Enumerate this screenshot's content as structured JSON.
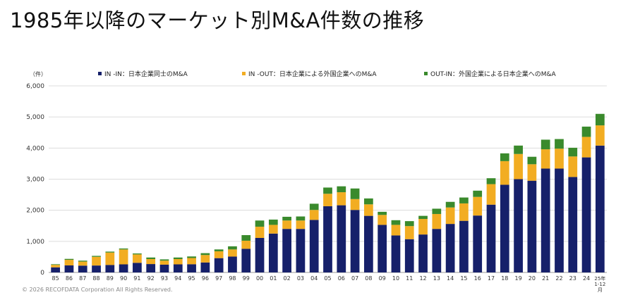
{
  "page": {
    "title": "1985年以降のマーケット別M&A件数の推移",
    "copyright": "© 2026 RECOFDATA Corporation All Rights Reserved."
  },
  "chart_data": {
    "type": "bar",
    "stacked": true,
    "unit_label": "（件）",
    "categories": [
      "85",
      "86",
      "87",
      "88",
      "89",
      "90",
      "91",
      "92",
      "93",
      "94",
      "95",
      "96",
      "97",
      "98",
      "99",
      "00",
      "01",
      "02",
      "03",
      "04",
      "05",
      "06",
      "07",
      "08",
      "09",
      "10",
      "11",
      "12",
      "13",
      "14",
      "15",
      "16",
      "17",
      "18",
      "19",
      "20",
      "21",
      "22",
      "23",
      "24",
      "25年\n1-12\n月"
    ],
    "series": [
      {
        "name": "IN -IN：日本企業同士のM&A",
        "color": "#16206a",
        "values": [
          164,
          226,
          219,
          223,
          240,
          260,
          310,
          270,
          250,
          260,
          264,
          320,
          460,
          510,
          760,
          1110,
          1250,
          1400,
          1400,
          1690,
          2130,
          2160,
          2010,
          1820,
          1530,
          1190,
          1070,
          1220,
          1400,
          1560,
          1660,
          1830,
          2180,
          2820,
          3000,
          2950,
          3340,
          3340,
          3070,
          3700,
          4080
        ]
      },
      {
        "name": "IN -OUT：日本企業による外国企業へのM&A",
        "color": "#f2ad22",
        "values": [
          80,
          180,
          130,
          280,
          400,
          480,
          270,
          160,
          130,
          170,
          200,
          240,
          220,
          230,
          260,
          360,
          280,
          270,
          270,
          320,
          400,
          420,
          350,
          370,
          320,
          340,
          420,
          500,
          480,
          530,
          560,
          600,
          660,
          760,
          810,
          530,
          620,
          640,
          660,
          660,
          650
        ]
      },
      {
        "name": "OUT-IN：外国企業による日本企業へのM&A",
        "color": "#3a8a2c",
        "values": [
          20,
          30,
          30,
          30,
          30,
          30,
          30,
          50,
          40,
          50,
          50,
          60,
          60,
          100,
          180,
          200,
          170,
          120,
          130,
          200,
          200,
          190,
          340,
          190,
          100,
          150,
          160,
          100,
          170,
          180,
          190,
          200,
          190,
          250,
          270,
          240,
          310,
          310,
          280,
          330,
          370
        ]
      }
    ],
    "ylim": [
      0,
      6000
    ],
    "yticks": [
      "0",
      "1,000",
      "2,000",
      "3,000",
      "4,000",
      "5,000",
      "6,000"
    ],
    "ytick_values": [
      0,
      1000,
      2000,
      3000,
      4000,
      5000,
      6000
    ],
    "grid": true,
    "legend_position": "top"
  }
}
